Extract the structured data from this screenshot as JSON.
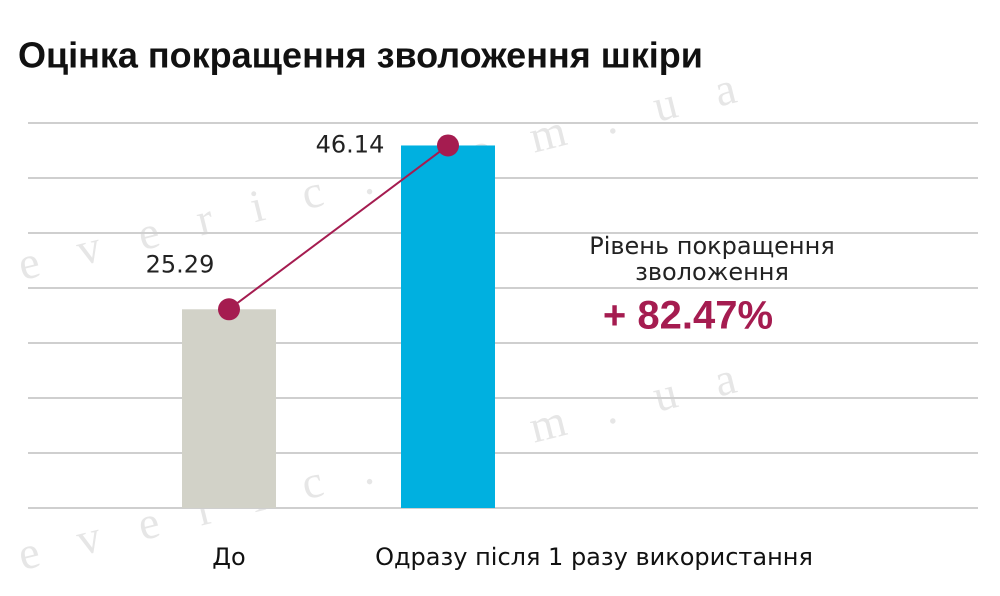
{
  "chart_data": {
    "type": "bar",
    "title": "Оцінка покращення зволоження шкіри",
    "categories": [
      "До",
      "Одразу після 1 разу використання"
    ],
    "values": [
      25.29,
      46.14
    ],
    "colors": [
      "#d2d2c8",
      "#00b0e0"
    ],
    "line_color": "#a51c50",
    "ylim": [
      0,
      49
    ],
    "yticks": [
      0,
      7,
      14,
      21,
      28,
      35,
      42,
      49
    ],
    "grid": true,
    "annotation": "Рівень покращення зволоження",
    "annotation_value": "+ 82.47%",
    "watermark": "everic.com.ua"
  }
}
